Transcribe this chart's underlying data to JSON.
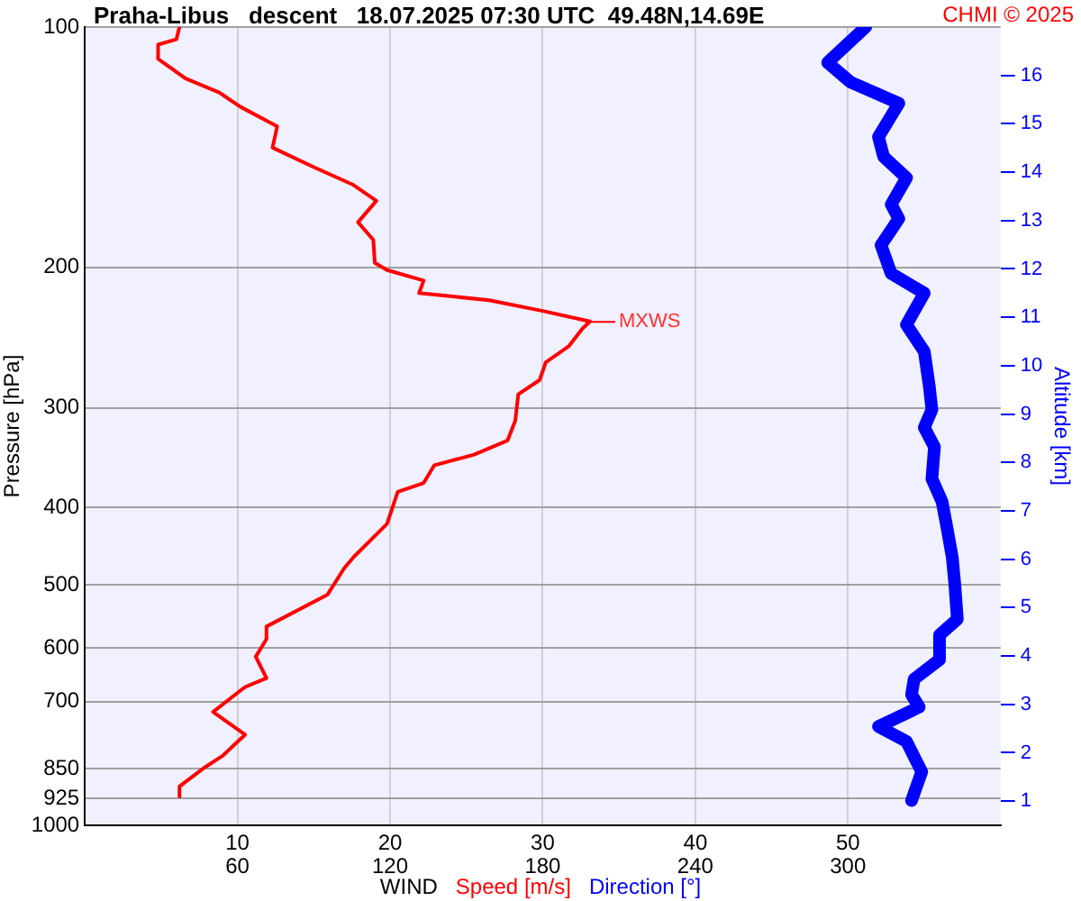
{
  "chart_data": {
    "type": "line",
    "title": "Praha-Libus   descent   18.07.2025 07:30 UTC  49.48N,14.69E",
    "xlabel": "WIND",
    "ylabel": "Pressure [hPa]",
    "y2label": "Altitude [km]",
    "annotations": [
      "CHMI © 2025",
      {
        "text": "MXWS",
        "x": 33.1,
        "y": 234
      }
    ],
    "log": "y",
    "grid": true,
    "legend": "bottom",
    "marker": "none",
    "line_style": "solid",
    "xlim": [
      0,
      60
    ],
    "xticks": [
      10,
      20,
      30,
      40,
      50
    ],
    "x2lim": [
      0,
      360
    ],
    "x2ticks": [
      60,
      120,
      180,
      240,
      300
    ],
    "ylim": [
      1000,
      100
    ],
    "yticks": [
      100,
      200,
      300,
      400,
      500,
      600,
      700,
      850,
      925,
      1000
    ],
    "y2lim": [
      0.5,
      17
    ],
    "y2ticks": [
      1,
      2,
      3,
      4,
      5,
      6,
      7,
      8,
      9,
      10,
      11,
      12,
      13,
      14,
      15,
      16
    ],
    "series": [
      {
        "name": "Speed [m/s]",
        "color": "#ff0000",
        "x": [
          6.2,
          6.0,
          4.8,
          4.8,
          6.6,
          8.8,
          10.2,
          12.6,
          12.3,
          15.0,
          17.6,
          19.1,
          17.9,
          18.9,
          19.0,
          19.8,
          22.2,
          21.9,
          26.5,
          30.0,
          33.1,
          32.6,
          31.7,
          30.2,
          29.8,
          28.4,
          28.2,
          27.7,
          25.5,
          22.9,
          22.2,
          20.5,
          19.8,
          17.6,
          17.0,
          15.9,
          11.9,
          11.9,
          11.2,
          11.9,
          10.5,
          8.4,
          10.5,
          9.0,
          7.9,
          6.2,
          6.2
        ],
        "values": [
          100,
          103.6,
          105.2,
          109.6,
          116,
          120.8,
          125.9,
          133.2,
          141.6,
          149.8,
          157.7,
          165.1,
          175.6,
          184.8,
          197.4,
          201.6,
          207.8,
          215.4,
          219.9,
          226.8,
          233.8,
          238.7,
          251.2,
          263,
          276.8,
          288.4,
          311.3,
          329.5,
          343.3,
          353.9,
          372.5,
          382.2,
          419.1,
          461.6,
          476.2,
          514,
          563.6,
          584.3,
          614.9,
          654,
          671,
          721,
          770,
          819,
          845,
          894,
          921
        ]
      },
      {
        "name": "Direction [°]",
        "color": "#0000ff",
        "axis": "x2",
        "x": [
          307,
          292,
          301,
          320,
          312,
          314,
          323,
          317,
          320,
          313,
          317,
          330,
          323,
          330,
          332,
          333,
          330,
          334,
          333,
          337,
          339,
          341,
          342,
          343,
          336,
          336,
          326,
          325,
          328,
          312,
          323,
          329,
          325
        ],
        "values": [
          100,
          110.8,
          117.2,
          124.6,
          137.3,
          145.3,
          154.5,
          166.8,
          173.8,
          187.6,
          203.6,
          215.4,
          236,
          254.9,
          282.3,
          301.6,
          317.5,
          335.8,
          368.1,
          393.3,
          425,
          461.6,
          498.5,
          551.7,
          577.5,
          620.2,
          656,
          686,
          711,
          752,
          785,
          857,
          931
        ]
      }
    ]
  }
}
